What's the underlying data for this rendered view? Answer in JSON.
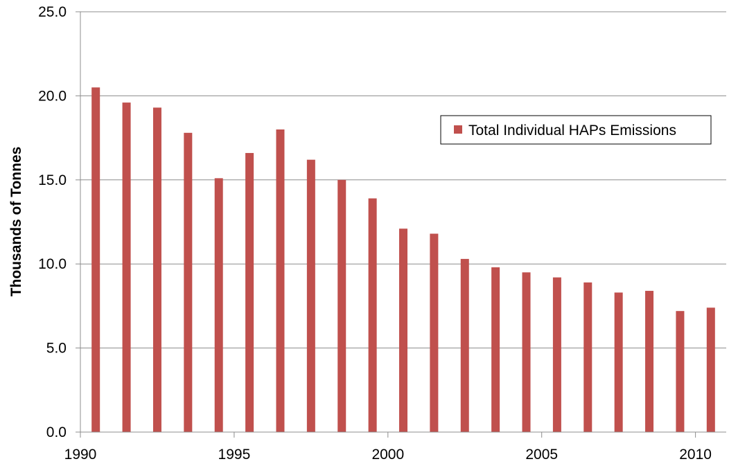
{
  "chart_data": {
    "type": "bar",
    "x": [
      1990,
      1991,
      1992,
      1993,
      1994,
      1995,
      1996,
      1997,
      1998,
      1999,
      2000,
      2001,
      2002,
      2003,
      2004,
      2005,
      2006,
      2007,
      2008,
      2009,
      2010
    ],
    "series": [
      {
        "name": "Total Individual HAPs Emissions",
        "color": "#c0504d",
        "values": [
          20.5,
          19.6,
          19.3,
          17.8,
          15.1,
          16.6,
          18.0,
          16.2,
          15.0,
          13.9,
          12.1,
          11.8,
          10.3,
          9.8,
          9.5,
          9.2,
          8.9,
          8.3,
          8.4,
          7.2,
          7.4
        ]
      }
    ],
    "ylabel": "Thousands of Tonnes",
    "xlabel": "",
    "ylim": [
      0,
      25
    ],
    "yticks": [
      "0.0",
      "5.0",
      "10.0",
      "15.0",
      "20.0",
      "25.0"
    ],
    "xticks": [
      "1990",
      "1995",
      "2000",
      "2005",
      "2010"
    ],
    "grid": "horizontal",
    "legend_position": "top-right"
  }
}
